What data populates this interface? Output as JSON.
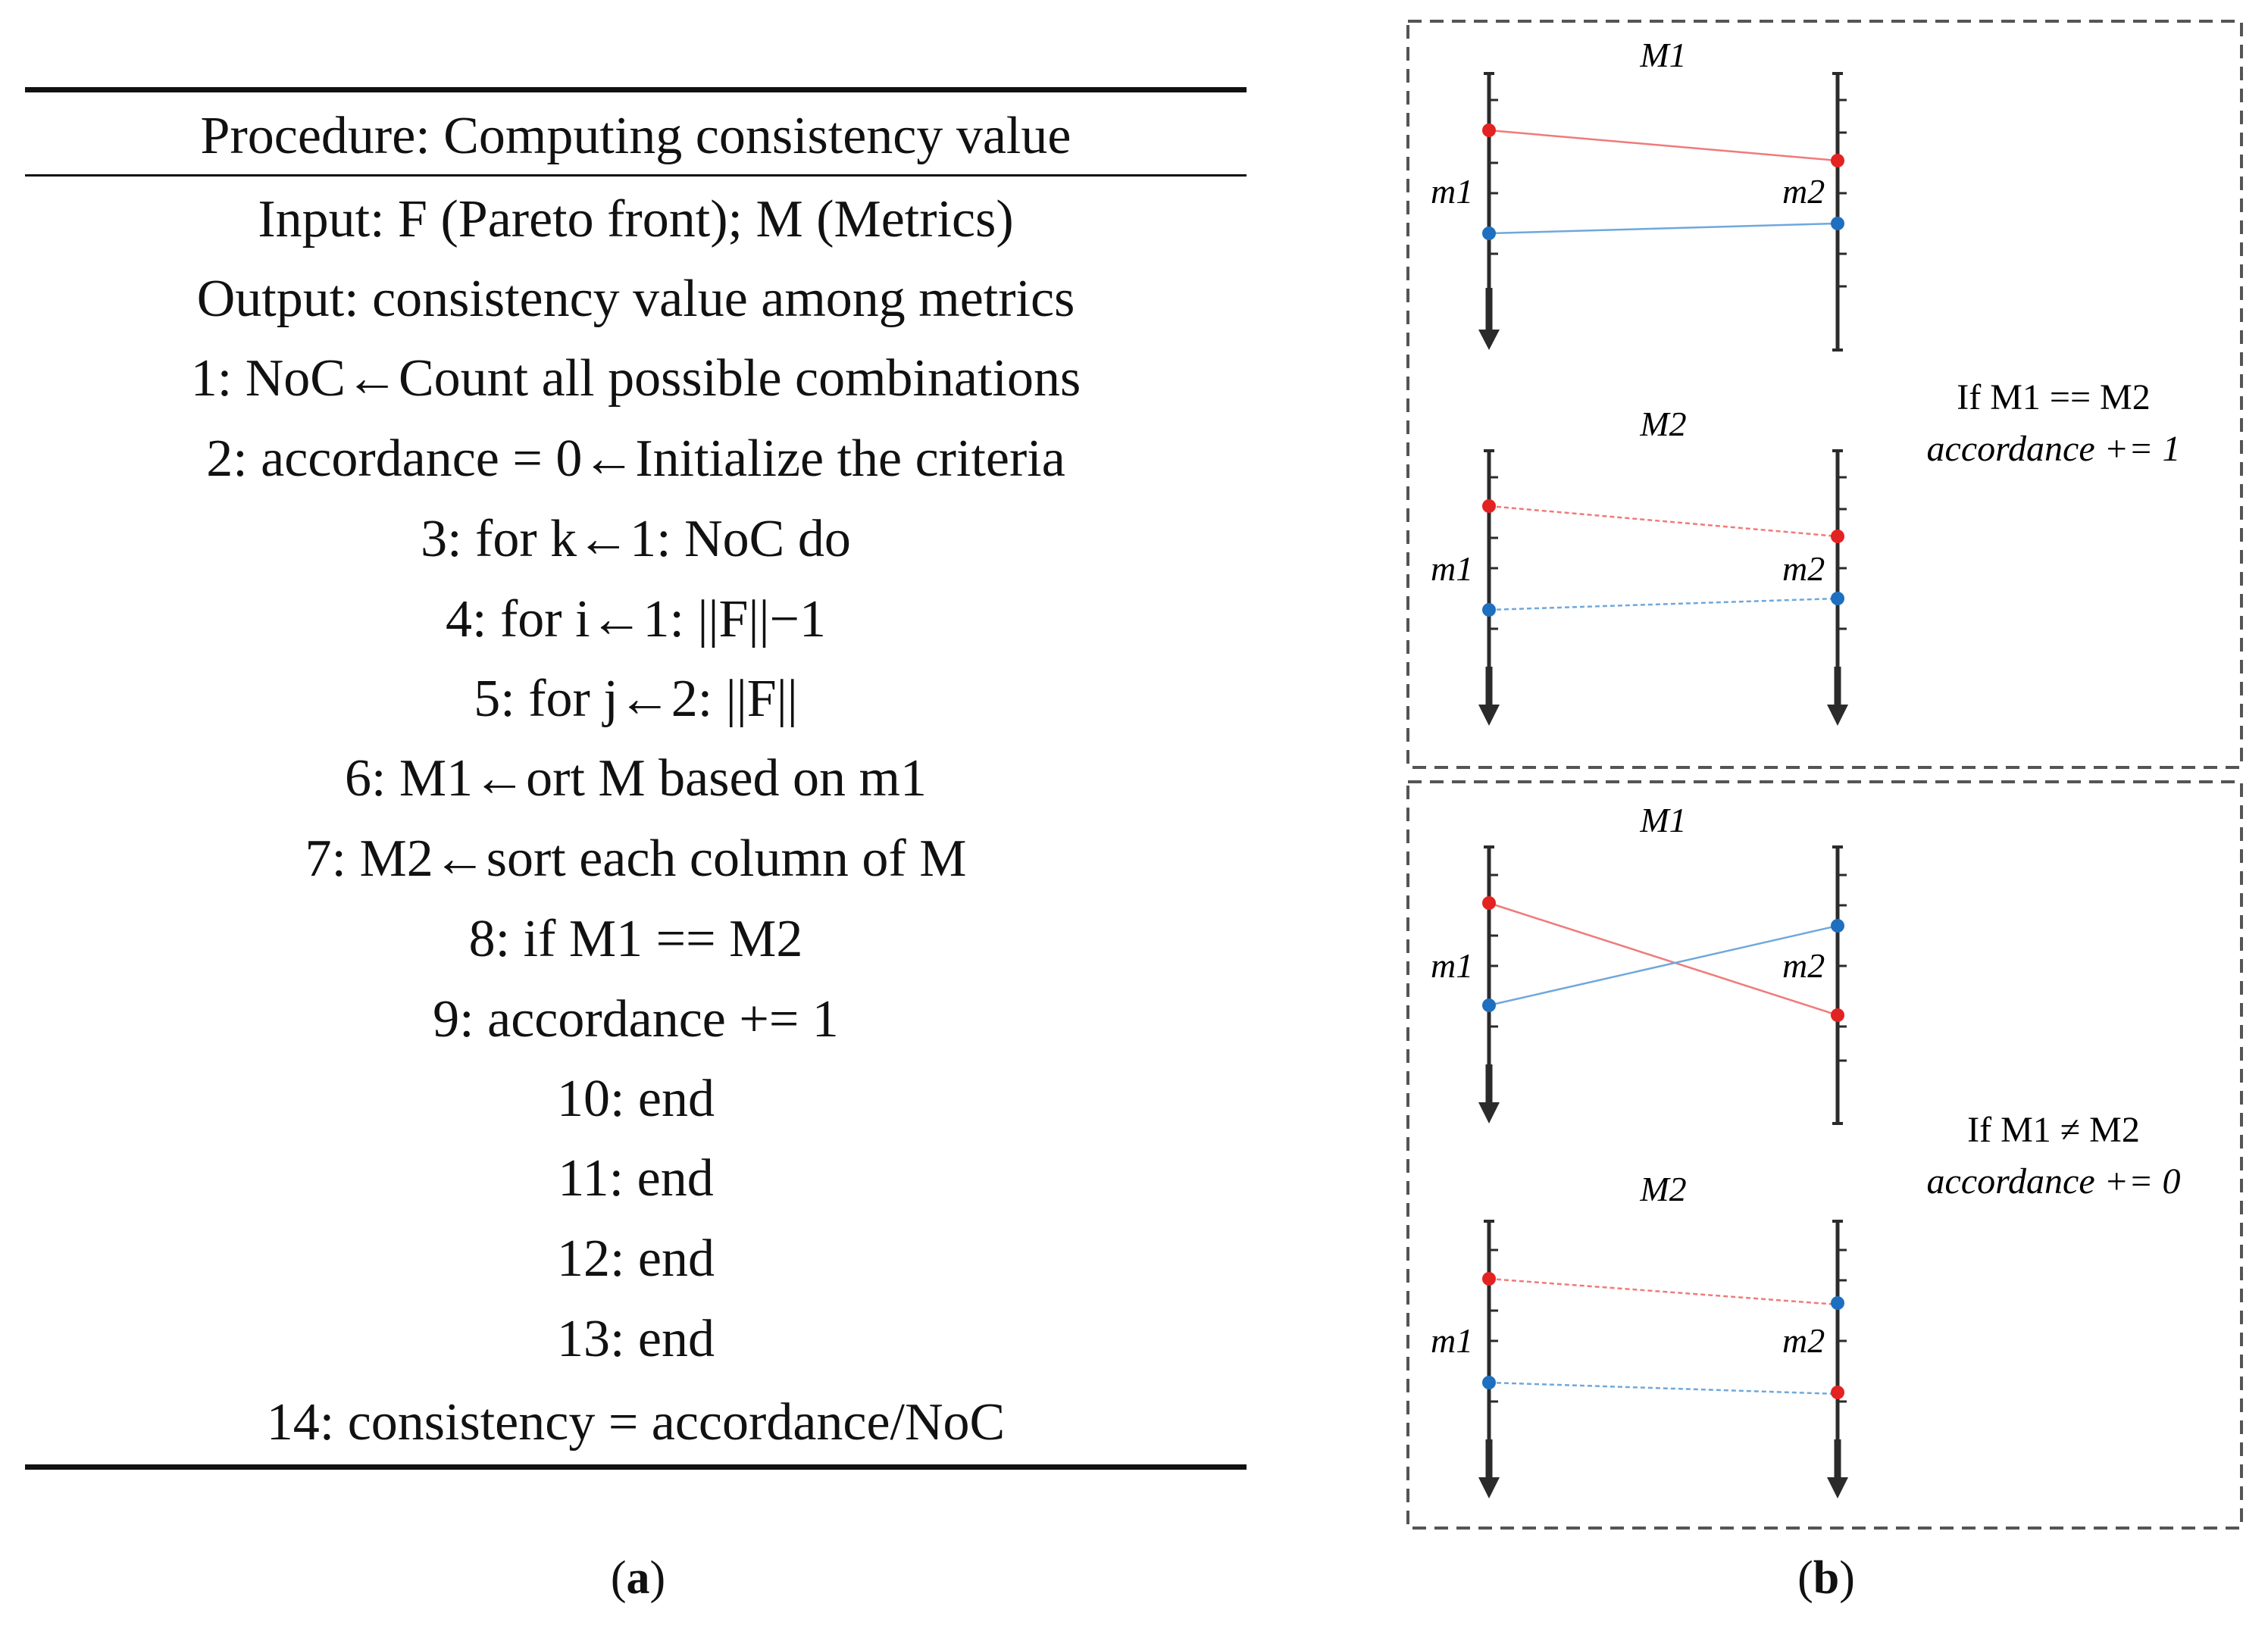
{
  "panel_a": {
    "title": "Procedure: Computing consistency value",
    "lines": [
      "Input: F (Pareto front); M (Metrics)",
      "Output: consistency value among metrics",
      "1: NoC←Count all possible combinations",
      "2: accordance = 0←Initialize the criteria",
      "3: for k←1: NoC do",
      "4: for i←1: ||F||−1",
      "5: for j←2: ||F||",
      "6: M1←ort M based on m1",
      "7: M2←sort each column of M",
      "8: if M1 == M2",
      "9: accordance += 1",
      "10: end",
      "11: end",
      "12: end",
      "13: end",
      "14: consistency = accordance/NoC"
    ],
    "caption_letter": "a"
  },
  "panel_b": {
    "caption_letter": "b",
    "boxes": [
      {
        "sub_top": "M1",
        "sub_bottom": "M2",
        "axis_left_label": "m1",
        "axis_right_label": "m2",
        "condition": "If M1 == M2",
        "result": "accordance += 1"
      },
      {
        "sub_top": "M1",
        "sub_bottom": "M2",
        "axis_left_label": "m1",
        "axis_right_label": "m2",
        "condition": "If M1 ≠ M2",
        "result": "accordance += 0"
      }
    ]
  },
  "colors": {
    "red": "#e32222",
    "blue": "#1f6fc0",
    "red_line": "#f07a7a",
    "blue_line": "#6fa8dc",
    "axis": "#2b2b2b",
    "dash_border": "#555555"
  }
}
